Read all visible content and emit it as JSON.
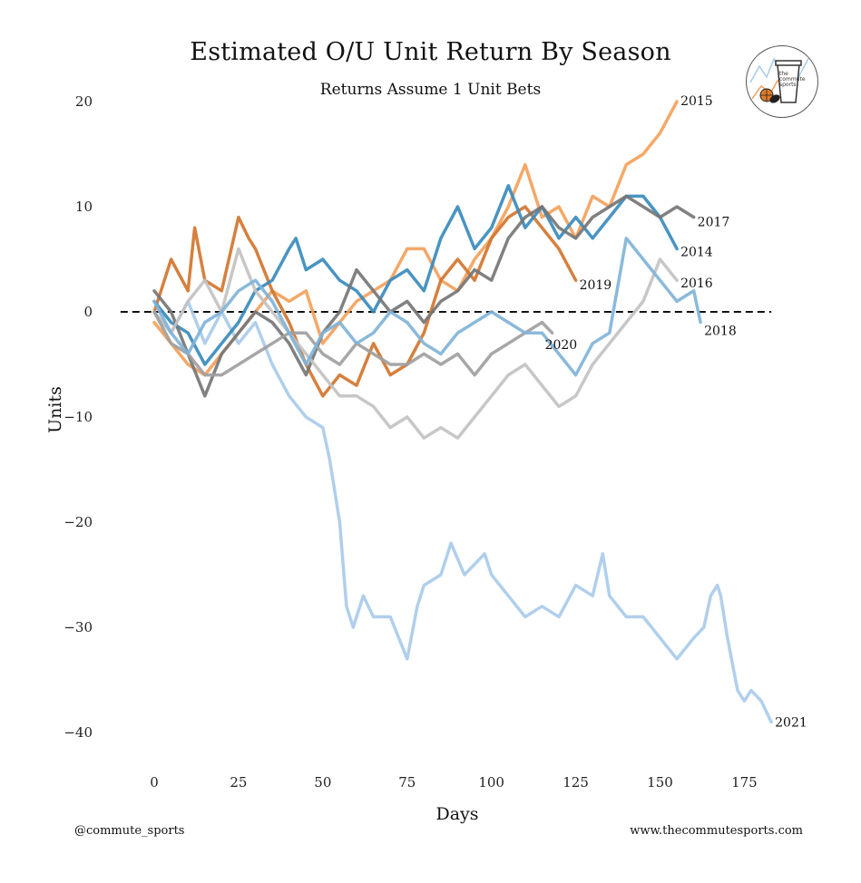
{
  "chart_data": {
    "type": "line",
    "title": "Estimated O/U Unit Return By Season",
    "subtitle": "Returns Assume 1 Unit Bets",
    "xlabel": "Days",
    "ylabel": "Units",
    "xlim": [
      -13,
      183
    ],
    "ylim": [
      -43,
      22
    ],
    "xticks": [
      0,
      25,
      50,
      75,
      100,
      125,
      150,
      175
    ],
    "yticks": [
      20,
      10,
      0,
      -10,
      -20,
      -30,
      -40
    ],
    "zero_line": {
      "y": 0,
      "style": "dashed"
    },
    "grid": false,
    "legend": "none (series labeled at line ends)",
    "series": [
      {
        "name": "2021",
        "color": "#a9cbea",
        "x": [
          0,
          5,
          10,
          15,
          20,
          25,
          30,
          35,
          40,
          45,
          50,
          52,
          54,
          55,
          57,
          59,
          60,
          62,
          65,
          70,
          75,
          78,
          80,
          85,
          88,
          92,
          95,
          98,
          100,
          105,
          110,
          115,
          120,
          125,
          130,
          133,
          135,
          140,
          145,
          150,
          155,
          160,
          163,
          165,
          167,
          168,
          170,
          173,
          175,
          177,
          180,
          183
        ],
        "y": [
          0,
          -2,
          1,
          -3,
          0,
          -3,
          -1,
          -5,
          -8,
          -10,
          -11,
          -14,
          -18,
          -20,
          -28,
          -30,
          -29,
          -27,
          -29,
          -29,
          -33,
          -28,
          -26,
          -25,
          -22,
          -25,
          -24,
          -23,
          -25,
          -27,
          -29,
          -28,
          -29,
          -26,
          -27,
          -23,
          -27,
          -29,
          -29,
          -31,
          -33,
          -31,
          -30,
          -27,
          -26,
          -27,
          -31,
          -36,
          -37,
          -36,
          -37,
          -39
        ]
      },
      {
        "name": "2015",
        "color": "#f4a15b",
        "x": [
          0,
          5,
          10,
          15,
          20,
          25,
          30,
          35,
          40,
          45,
          50,
          55,
          60,
          65,
          70,
          75,
          80,
          85,
          90,
          95,
          100,
          105,
          110,
          115,
          120,
          125,
          130,
          135,
          140,
          145,
          150,
          155
        ],
        "y": [
          -1,
          -3,
          -5,
          -6,
          -4,
          -2,
          0,
          2,
          1,
          2,
          -3,
          -1,
          1,
          2,
          3,
          6,
          6,
          3,
          2,
          5,
          7,
          10,
          14,
          9,
          10,
          7,
          11,
          10,
          14,
          15,
          17,
          20
        ]
      },
      {
        "name": "2019",
        "color": "#d2752e",
        "x": [
          0,
          5,
          10,
          12,
          15,
          20,
          25,
          28,
          30,
          35,
          40,
          45,
          50,
          55,
          60,
          65,
          70,
          75,
          80,
          85,
          90,
          95,
          100,
          105,
          110,
          115,
          120,
          125
        ],
        "y": [
          0,
          5,
          2,
          8,
          3,
          2,
          9,
          7,
          6,
          2,
          -1,
          -5,
          -8,
          -6,
          -7,
          -3,
          -6,
          -5,
          -2,
          3,
          5,
          3,
          7,
          9,
          10,
          8,
          6,
          3
        ]
      },
      {
        "name": "2014",
        "color": "#3a8bbd",
        "x": [
          0,
          5,
          10,
          15,
          20,
          25,
          30,
          35,
          40,
          42,
          45,
          50,
          55,
          60,
          65,
          70,
          75,
          80,
          85,
          90,
          95,
          100,
          105,
          110,
          115,
          120,
          125,
          130,
          135,
          140,
          145,
          150,
          155
        ],
        "y": [
          1,
          -1,
          -2,
          -5,
          -3,
          -1,
          2,
          3,
          6,
          7,
          4,
          5,
          3,
          2,
          0,
          3,
          4,
          2,
          7,
          10,
          6,
          8,
          12,
          8,
          10,
          7,
          9,
          7,
          9,
          11,
          11,
          9,
          6
        ]
      },
      {
        "name": "2017",
        "color": "#767676",
        "x": [
          0,
          5,
          10,
          15,
          20,
          25,
          30,
          35,
          40,
          45,
          50,
          55,
          60,
          65,
          70,
          75,
          80,
          85,
          90,
          95,
          100,
          105,
          110,
          115,
          120,
          125,
          130,
          135,
          140,
          145,
          150,
          155,
          160
        ],
        "y": [
          2,
          0,
          -4,
          -8,
          -4,
          -2,
          0,
          -1,
          -3,
          -6,
          -2,
          0,
          4,
          2,
          0,
          1,
          -1,
          1,
          2,
          4,
          3,
          7,
          9,
          10,
          8,
          7,
          9,
          10,
          11,
          10,
          9,
          10,
          9
        ]
      },
      {
        "name": "2016",
        "color": "#c2c2c2",
        "x": [
          0,
          5,
          10,
          15,
          20,
          25,
          30,
          35,
          40,
          45,
          50,
          55,
          60,
          65,
          70,
          75,
          80,
          85,
          90,
          95,
          100,
          105,
          110,
          115,
          120,
          125,
          130,
          135,
          140,
          145,
          150,
          155
        ],
        "y": [
          0,
          -2,
          1,
          3,
          0,
          6,
          2,
          0,
          -2,
          -4,
          -6,
          -8,
          -8,
          -9,
          -11,
          -10,
          -12,
          -11,
          -12,
          -10,
          -8,
          -6,
          -5,
          -7,
          -9,
          -8,
          -5,
          -3,
          -1,
          1,
          5,
          3
        ]
      },
      {
        "name": "2020",
        "color": "#a0a0a0",
        "x": [
          0,
          5,
          10,
          15,
          20,
          25,
          30,
          35,
          40,
          45,
          50,
          55,
          60,
          65,
          70,
          75,
          80,
          85,
          90,
          95,
          100,
          105,
          110,
          115,
          118
        ],
        "y": [
          0,
          -3,
          -4,
          -6,
          -6,
          -5,
          -4,
          -3,
          -2,
          -2,
          -4,
          -5,
          -3,
          -4,
          -5,
          -5,
          -4,
          -5,
          -4,
          -6,
          -4,
          -3,
          -2,
          -1,
          -2
        ]
      },
      {
        "name": "2018",
        "color": "#80b3d8",
        "x": [
          0,
          5,
          10,
          15,
          20,
          25,
          30,
          35,
          40,
          45,
          50,
          55,
          60,
          65,
          70,
          75,
          80,
          85,
          90,
          95,
          100,
          105,
          110,
          115,
          120,
          125,
          130,
          135,
          140,
          145,
          150,
          155,
          160,
          162
        ],
        "y": [
          1,
          -2,
          -4,
          -1,
          0,
          2,
          3,
          1,
          -2,
          -5,
          -2,
          -1,
          -3,
          -2,
          0,
          -1,
          -3,
          -4,
          -2,
          -1,
          0,
          -1,
          -2,
          -2,
          -4,
          -6,
          -3,
          -2,
          7,
          5,
          3,
          1,
          2,
          -1
        ]
      }
    ]
  },
  "footer": {
    "left": "@commute_sports",
    "right": "www.thecommutesports.com"
  },
  "logo": {
    "text": "the commute sports"
  }
}
